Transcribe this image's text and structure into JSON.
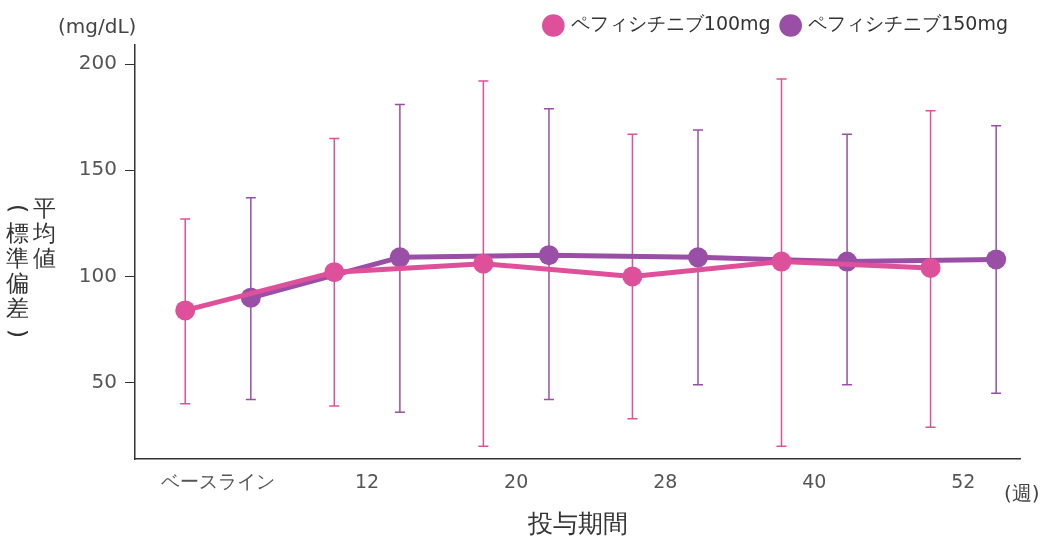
{
  "chart_data": {
    "type": "line",
    "xlabel": "投与期間",
    "ylabel": "平均値(標準偏差)",
    "categories": [
      "ベースライン",
      "12",
      "20",
      "28",
      "40",
      "52"
    ],
    "series": [
      {
        "name": "ペフィシチニブ100mg",
        "color": "#df509b",
        "values": [
          84,
          102,
          106,
          100,
          107,
          104
        ],
        "errors": [
          [
            40,
            127
          ],
          [
            39,
            165
          ],
          [
            20,
            192
          ],
          [
            33,
            167
          ],
          [
            20,
            193
          ],
          [
            29,
            178
          ]
        ]
      },
      {
        "name": "ペフィシチニブ150mg",
        "color": "#9a4fa6",
        "values": [
          90,
          109,
          110,
          109,
          107,
          108
        ],
        "errors": [
          [
            42,
            137
          ],
          [
            36,
            181
          ],
          [
            42,
            179
          ],
          [
            49,
            169
          ],
          [
            49,
            167
          ],
          [
            45,
            171
          ]
        ]
      }
    ],
    "ylim": [
      14,
      209
    ],
    "yticks": [
      50,
      100,
      150,
      200
    ],
    "grid": false,
    "legend": "top right",
    "marker": "circle",
    "line_style": "solid",
    "annotations": [
      "(mg/dL)",
      "(週)"
    ]
  }
}
